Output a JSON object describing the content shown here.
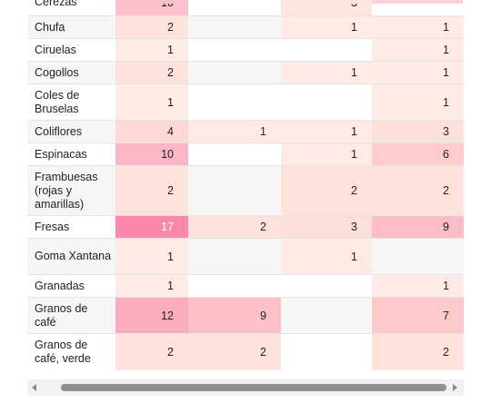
{
  "table": {
    "rows": [
      {
        "name": "Cerezas",
        "values": [
          "10",
          "",
          "3",
          ""
        ],
        "shades": [
          "#fdc0cd",
          "#ffffff",
          "#fee5e0",
          "#ffffff"
        ],
        "bg": "#ffffff"
      },
      {
        "name": "Chufa",
        "values": [
          "2",
          "",
          "1",
          "1"
        ],
        "shades": [
          "#fee3dd",
          "#f6f6f6",
          "#feebe5",
          "#feebe5"
        ],
        "bg": "#f6f6f6"
      },
      {
        "name": "Ciruelas",
        "values": [
          "1",
          "",
          "",
          "1"
        ],
        "shades": [
          "#feebe5",
          "#ffffff",
          "#ffffff",
          "#feebe5"
        ],
        "bg": "#ffffff"
      },
      {
        "name": "Cogollos",
        "values": [
          "2",
          "",
          "1",
          "1"
        ],
        "shades": [
          "#fee3dd",
          "#f6f6f6",
          "#feebe5",
          "#feebe5"
        ],
        "bg": "#f6f6f6"
      },
      {
        "name": "Coles de Bruselas",
        "values": [
          "1",
          "",
          "",
          "1"
        ],
        "shades": [
          "#feebe5",
          "#ffffff",
          "#ffffff",
          "#feebe5"
        ],
        "bg": "#ffffff"
      },
      {
        "name": "Coliflores",
        "values": [
          "4",
          "1",
          "1",
          "3"
        ],
        "shades": [
          "#fed9d3",
          "#feebe5",
          "#feebe5",
          "#fee0da"
        ],
        "bg": "#f6f6f6"
      },
      {
        "name": "Espinacas",
        "values": [
          "10",
          "",
          "1",
          "6"
        ],
        "shades": [
          "#fdb6c4",
          "#ffffff",
          "#feebe5",
          "#fdcdcb"
        ],
        "bg": "#ffffff"
      },
      {
        "name": "Frambuesas (rojas y amarillas)",
        "values": [
          "2",
          "",
          "2",
          "2"
        ],
        "shades": [
          "#fee3dd",
          "#f6f6f6",
          "#fee3dd",
          "#fee3dd"
        ],
        "bg": "#f6f6f6"
      },
      {
        "name": "Fresas",
        "values": [
          "17",
          "2",
          "3",
          "9"
        ],
        "shades": [
          "#fb88aa",
          "#fee3dd",
          "#fee0da",
          "#fdbcc6"
        ],
        "bg": "#ffffff"
      },
      {
        "name": "Goma Xantana",
        "values": [
          "1",
          "",
          "1",
          ""
        ],
        "shades": [
          "#feebe5",
          "#f6f6f6",
          "#feebe5",
          "#f6f6f6"
        ],
        "bg": "#f6f6f6"
      },
      {
        "name": "Granadas",
        "values": [
          "1",
          "",
          "",
          "1"
        ],
        "shades": [
          "#feebe5",
          "#ffffff",
          "#ffffff",
          "#feebe5"
        ],
        "bg": "#ffffff"
      },
      {
        "name": "Granos de café",
        "values": [
          "12",
          "9",
          "",
          "7"
        ],
        "shades": [
          "#fcadbd",
          "#fdc0c8",
          "#f6f6f6",
          "#fdcacc"
        ],
        "bg": "#f6f6f6"
      },
      {
        "name": "Granos de café, verde",
        "values": [
          "2",
          "2",
          "",
          "2"
        ],
        "shades": [
          "#fee3dd",
          "#fee3dd",
          "#ffffff",
          "#fee3dd"
        ],
        "bg": "#ffffff"
      }
    ],
    "top_strip_colors": [
      "#fdc0cd",
      "#ffffff",
      "#fee5e0",
      "#ffd0d6"
    ]
  },
  "scrollbar": {
    "left_arrow_icon": "arrow-left-icon",
    "right_arrow_icon": "arrow-right-icon"
  }
}
